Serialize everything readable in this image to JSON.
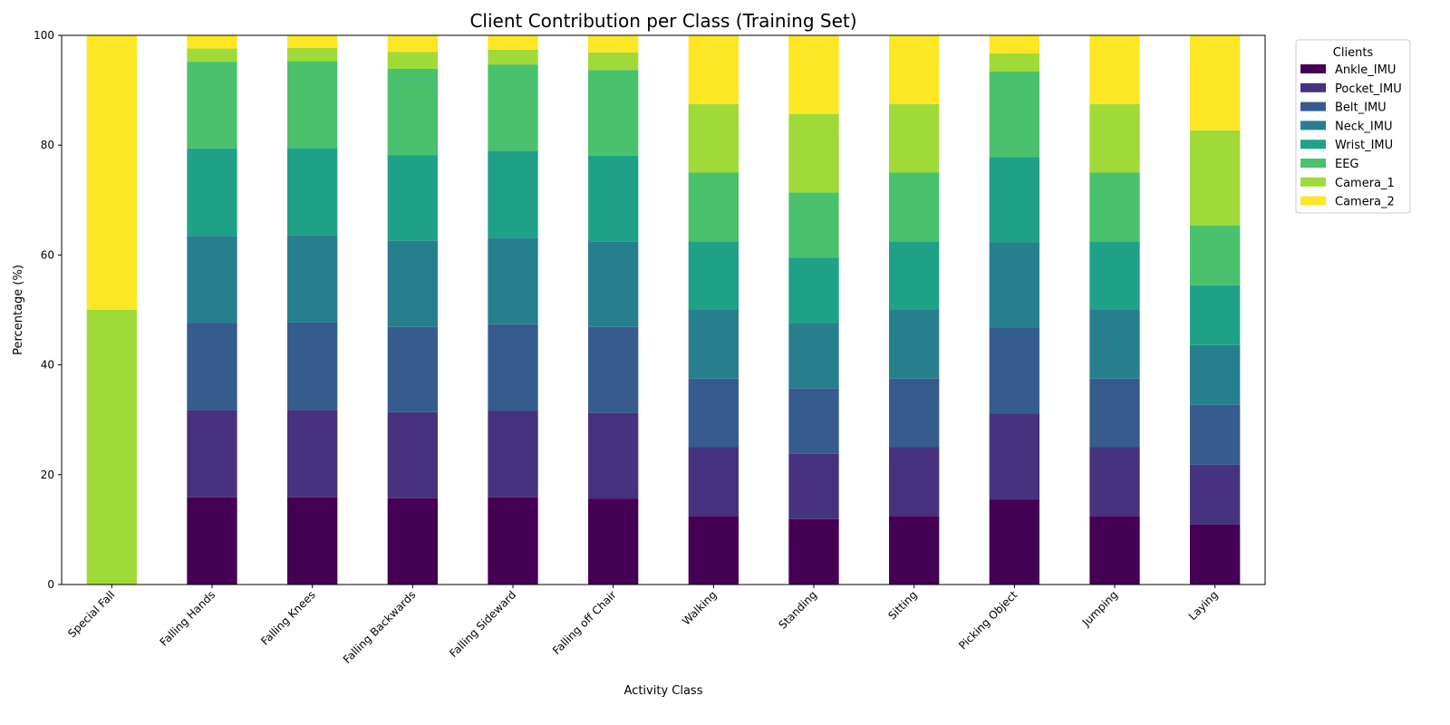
{
  "chart_data": {
    "type": "bar",
    "stacked": true,
    "title": "Client Contribution per Class (Training Set)",
    "xlabel": "Activity Class",
    "ylabel": "Percentage (%)",
    "ylim": [
      0,
      100
    ],
    "yticks": [
      0,
      20,
      40,
      60,
      80,
      100
    ],
    "grid": false,
    "legend": {
      "title": "Clients",
      "placement": "outside-top-right"
    },
    "categories": [
      "Special Fall",
      "Falling Hands",
      "Falling Knees",
      "Falling Backwards",
      "Falling Sideward",
      "Falling off Chair",
      "Walking",
      "Standing",
      "Sitting",
      "Picking Object",
      "Jumping",
      "Laying"
    ],
    "series": [
      {
        "name": "Ankle_IMU",
        "color": "#440154",
        "values": [
          0,
          15.9,
          15.9,
          15.7,
          15.9,
          15.6,
          12.5,
          11.9,
          12.5,
          15.5,
          12.5,
          10.9
        ]
      },
      {
        "name": "Pocket_IMU",
        "color": "#46327e",
        "values": [
          0,
          15.9,
          15.9,
          15.7,
          15.7,
          15.6,
          12.5,
          11.9,
          12.5,
          15.6,
          12.5,
          10.9
        ]
      },
      {
        "name": "Belt_IMU",
        "color": "#365c8d",
        "values": [
          0,
          15.8,
          15.9,
          15.5,
          15.8,
          15.7,
          12.5,
          11.9,
          12.5,
          15.6,
          12.5,
          10.9
        ]
      },
      {
        "name": "Neck_IMU",
        "color": "#277f8e",
        "values": [
          0,
          15.9,
          15.9,
          15.7,
          15.7,
          15.6,
          12.5,
          11.9,
          12.5,
          15.6,
          12.5,
          10.9
        ]
      },
      {
        "name": "Wrist_IMU",
        "color": "#1fa187",
        "values": [
          0,
          15.9,
          15.9,
          15.6,
          15.9,
          15.6,
          12.5,
          11.9,
          12.5,
          15.5,
          12.5,
          10.9
        ]
      },
      {
        "name": "EEG",
        "color": "#4ac16d",
        "values": [
          0,
          15.8,
          15.8,
          15.7,
          15.7,
          15.6,
          12.5,
          11.9,
          12.5,
          15.6,
          12.5,
          10.9
        ]
      },
      {
        "name": "Camera_1",
        "color": "#a0da39",
        "values": [
          50,
          2.4,
          2.4,
          3.1,
          2.7,
          3.2,
          12.5,
          14.3,
          12.5,
          3.3,
          12.5,
          17.3
        ]
      },
      {
        "name": "Camera_2",
        "color": "#fde725",
        "values": [
          50,
          2.5,
          2.4,
          3.0,
          2.6,
          3.1,
          12.5,
          14.3,
          12.5,
          3.3,
          12.5,
          17.3
        ]
      }
    ]
  }
}
